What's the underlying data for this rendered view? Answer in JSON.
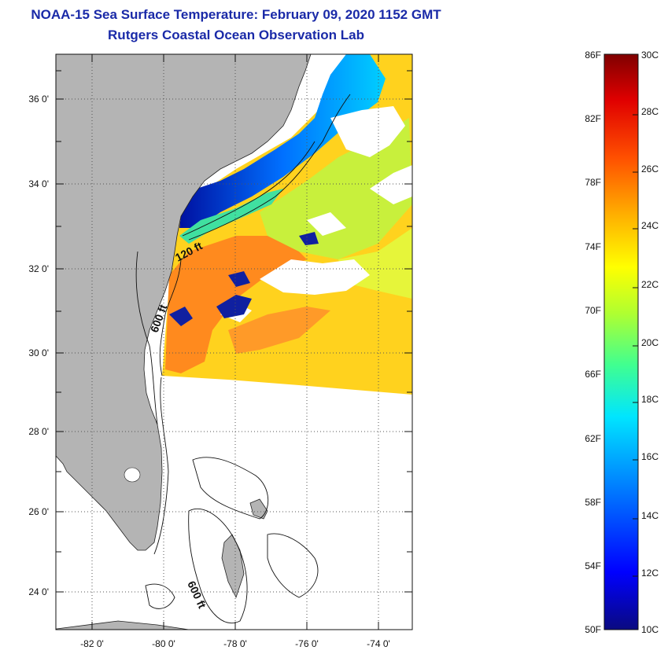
{
  "header": {
    "title": "NOAA-15 Sea Surface Temperature:  February 09, 2020 1152 GMT",
    "subtitle": "Rutgers Coastal Ocean Observation Lab"
  },
  "map": {
    "lat_labels": [
      "36 0'",
      "34 0'",
      "32 0'",
      "30 0'",
      "28 0'",
      "26 0'",
      "24 0'"
    ],
    "lat_values": [
      36,
      34,
      32,
      30,
      28,
      26,
      24
    ],
    "lon_labels": [
      "-82 0'",
      "-80 0'",
      "-78 0'",
      "-76 0'",
      "-74 0'"
    ],
    "lon_values": [
      -82,
      -80,
      -78,
      -76,
      -74
    ],
    "lon_range": [
      -83,
      -73
    ],
    "lat_range": [
      23,
      37
    ],
    "contour_labels": [
      "120 ft",
      "600 ft",
      "600 ft"
    ],
    "colors": {
      "land": "#b4b4b4",
      "no_data": "#ffffff",
      "grid": "#555555"
    }
  },
  "colorbar": {
    "fahrenheit_labels": [
      "86F",
      "82F",
      "78F",
      "74F",
      "70F",
      "66F",
      "62F",
      "58F",
      "54F",
      "50F"
    ],
    "celsius_labels": [
      "30C",
      "28C",
      "26C",
      "24C",
      "22C",
      "20C",
      "18C",
      "16C",
      "14C",
      "12C",
      "10C"
    ],
    "range_f": [
      50,
      86
    ],
    "range_c": [
      10,
      30
    ],
    "gradient": [
      "#0a0a80",
      "#0000ff",
      "#0080ff",
      "#00e5ff",
      "#40ff90",
      "#b0ff30",
      "#ffff00",
      "#ffb000",
      "#ff5000",
      "#e00000",
      "#800000"
    ]
  }
}
